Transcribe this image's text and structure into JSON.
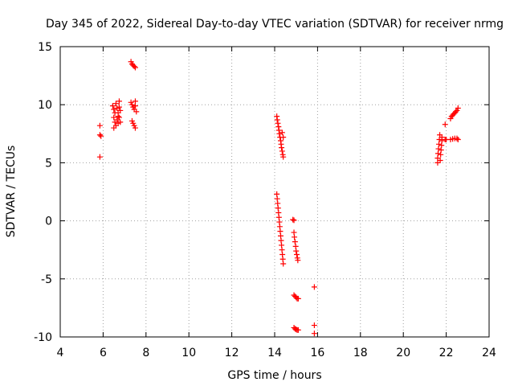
{
  "chart_data": {
    "type": "scatter",
    "title": "Day 345 of 2022, Sidereal Day-to-day VTEC variation (SDTVAR) for receiver nrmg",
    "xlabel": "GPS time / hours",
    "ylabel": "SDTVAR / TECUs",
    "xlim": [
      4,
      24
    ],
    "ylim": [
      -10,
      15
    ],
    "xticks": [
      4,
      6,
      8,
      10,
      12,
      14,
      16,
      18,
      20,
      22,
      24
    ],
    "yticks": [
      -10,
      -5,
      0,
      5,
      10,
      15
    ],
    "grid": true,
    "marker": "plus",
    "color": "#ff0000",
    "series": [
      {
        "name": "SDTVAR",
        "points": [
          [
            5.85,
            8.2
          ],
          [
            5.85,
            7.4
          ],
          [
            5.9,
            7.3
          ],
          [
            5.85,
            5.5
          ],
          [
            6.45,
            9.9
          ],
          [
            6.5,
            9.6
          ],
          [
            6.55,
            9.3
          ],
          [
            6.5,
            8.9
          ],
          [
            6.55,
            8.5
          ],
          [
            6.6,
            8.2
          ],
          [
            6.6,
            10.1
          ],
          [
            6.65,
            9.7
          ],
          [
            6.7,
            9.3
          ],
          [
            6.7,
            9.0
          ],
          [
            6.65,
            8.7
          ],
          [
            6.7,
            8.4
          ],
          [
            6.75,
            10.3
          ],
          [
            6.75,
            9.8
          ],
          [
            6.8,
            9.5
          ],
          [
            6.75,
            8.9
          ],
          [
            6.8,
            8.5
          ],
          [
            6.5,
            8.0
          ],
          [
            7.3,
            13.7
          ],
          [
            7.35,
            13.5
          ],
          [
            7.4,
            13.4
          ],
          [
            7.45,
            13.3
          ],
          [
            7.5,
            13.2
          ],
          [
            7.3,
            10.2
          ],
          [
            7.35,
            10.0
          ],
          [
            7.4,
            9.8
          ],
          [
            7.45,
            9.6
          ],
          [
            7.5,
            10.3
          ],
          [
            7.5,
            9.9
          ],
          [
            7.35,
            8.6
          ],
          [
            7.4,
            8.4
          ],
          [
            7.45,
            8.2
          ],
          [
            7.5,
            8.0
          ],
          [
            7.55,
            9.4
          ],
          [
            14.1,
            9.0
          ],
          [
            14.12,
            8.7
          ],
          [
            14.15,
            8.4
          ],
          [
            14.18,
            8.1
          ],
          [
            14.2,
            7.8
          ],
          [
            14.22,
            7.5
          ],
          [
            14.25,
            7.2
          ],
          [
            14.28,
            6.9
          ],
          [
            14.3,
            6.6
          ],
          [
            14.32,
            6.3
          ],
          [
            14.35,
            6.0
          ],
          [
            14.38,
            5.7
          ],
          [
            14.4,
            5.5
          ],
          [
            14.35,
            7.6
          ],
          [
            14.4,
            7.2
          ],
          [
            14.1,
            2.3
          ],
          [
            14.12,
            1.9
          ],
          [
            14.14,
            1.5
          ],
          [
            14.16,
            1.1
          ],
          [
            14.18,
            0.7
          ],
          [
            14.2,
            0.3
          ],
          [
            14.22,
            -0.1
          ],
          [
            14.24,
            -0.5
          ],
          [
            14.26,
            -0.9
          ],
          [
            14.28,
            -1.3
          ],
          [
            14.3,
            -1.7
          ],
          [
            14.32,
            -2.1
          ],
          [
            14.34,
            -2.5
          ],
          [
            14.36,
            -2.9
          ],
          [
            14.38,
            -3.3
          ],
          [
            14.4,
            -3.7
          ],
          [
            14.85,
            0.1
          ],
          [
            14.9,
            0.05
          ],
          [
            14.9,
            -1.0
          ],
          [
            14.92,
            -1.4
          ],
          [
            14.95,
            -1.8
          ],
          [
            14.98,
            -2.2
          ],
          [
            15.0,
            -2.6
          ],
          [
            15.03,
            -2.9
          ],
          [
            15.06,
            -3.2
          ],
          [
            15.08,
            -3.4
          ],
          [
            14.9,
            -6.4
          ],
          [
            14.95,
            -6.5
          ],
          [
            15.0,
            -6.6
          ],
          [
            15.05,
            -6.7
          ],
          [
            15.1,
            -6.7
          ],
          [
            14.9,
            -9.2
          ],
          [
            14.95,
            -9.3
          ],
          [
            15.0,
            -9.35
          ],
          [
            15.05,
            -9.4
          ],
          [
            15.1,
            -9.4
          ],
          [
            15.85,
            -5.7
          ],
          [
            15.85,
            -9.0
          ],
          [
            15.85,
            -9.7
          ],
          [
            21.6,
            5.0
          ],
          [
            21.6,
            5.4
          ],
          [
            21.62,
            5.8
          ],
          [
            21.64,
            6.2
          ],
          [
            21.66,
            6.6
          ],
          [
            21.68,
            7.0
          ],
          [
            21.7,
            7.4
          ],
          [
            21.72,
            5.2
          ],
          [
            21.74,
            5.7
          ],
          [
            21.76,
            6.1
          ],
          [
            21.78,
            6.5
          ],
          [
            21.8,
            6.9
          ],
          [
            21.8,
            7.2
          ],
          [
            21.95,
            8.3
          ],
          [
            21.95,
            7.0
          ],
          [
            22.0,
            7.0
          ],
          [
            22.2,
            8.8
          ],
          [
            22.25,
            9.0
          ],
          [
            22.3,
            9.1
          ],
          [
            22.35,
            9.2
          ],
          [
            22.4,
            9.3
          ],
          [
            22.45,
            9.4
          ],
          [
            22.5,
            9.5
          ],
          [
            22.55,
            9.7
          ],
          [
            22.2,
            7.0
          ],
          [
            22.3,
            7.05
          ],
          [
            22.4,
            7.1
          ],
          [
            22.5,
            7.1
          ],
          [
            22.55,
            7.0
          ]
        ]
      }
    ]
  }
}
